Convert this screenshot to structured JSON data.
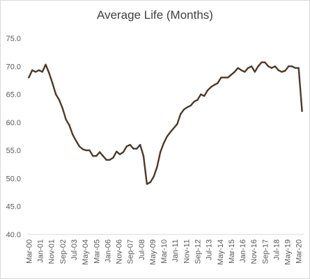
{
  "chart_data": {
    "type": "line",
    "title": "Average Life (Months)",
    "xlabel": "",
    "ylabel": "",
    "ylim": [
      40,
      75
    ],
    "yticks": [
      "40.0",
      "45.0",
      "50.0",
      "55.0",
      "60.0",
      "65.0",
      "70.0",
      "75.0"
    ],
    "xticks": [
      "Mar-00",
      "Jan-01",
      "Nov-01",
      "Sep-02",
      "Jul-03",
      "May-04",
      "Mar-05",
      "Jan-06",
      "Nov-06",
      "Sep-07",
      "Jul-08",
      "May-09",
      "Mar-10",
      "Jan-11",
      "Nov-11",
      "Sep-12",
      "Jul-13",
      "May-14",
      "Mar-15",
      "Jan-16",
      "Nov-16",
      "Sep-17",
      "Jul-18",
      "May-19",
      "Mar-20"
    ],
    "grid": false,
    "legend": "none",
    "line_color": "#4a3a2c",
    "axis_color": "#d9d9d9",
    "series": [
      {
        "values": [
          68.0,
          69.3,
          69.0,
          69.3,
          69.0,
          70.3,
          68.8,
          67.0,
          65.0,
          64.0,
          62.5,
          60.5,
          59.5,
          57.8,
          56.7,
          55.7,
          55.2,
          55.0,
          55.0,
          54.0,
          54.0,
          54.7,
          54.0,
          53.3,
          53.3,
          53.7,
          54.8,
          54.3,
          54.7,
          55.7,
          56.0,
          55.3,
          55.3,
          56.0,
          54.0,
          49.0,
          49.3,
          50.3,
          52.0,
          54.7,
          56.3,
          57.5,
          58.3,
          59.0,
          59.7,
          61.5,
          62.3,
          62.7,
          63.0,
          63.7,
          64.0,
          65.0,
          64.7,
          65.7,
          66.3,
          66.7,
          67.0,
          68.0,
          68.0,
          68.0,
          68.5,
          69.0,
          69.7,
          69.3,
          69.0,
          69.7,
          70.0,
          69.0,
          70.0,
          70.7,
          70.7,
          70.0,
          69.7,
          70.0,
          69.3,
          69.0,
          69.2,
          70.0,
          70.0,
          69.7,
          69.7,
          62.0
        ]
      }
    ]
  }
}
